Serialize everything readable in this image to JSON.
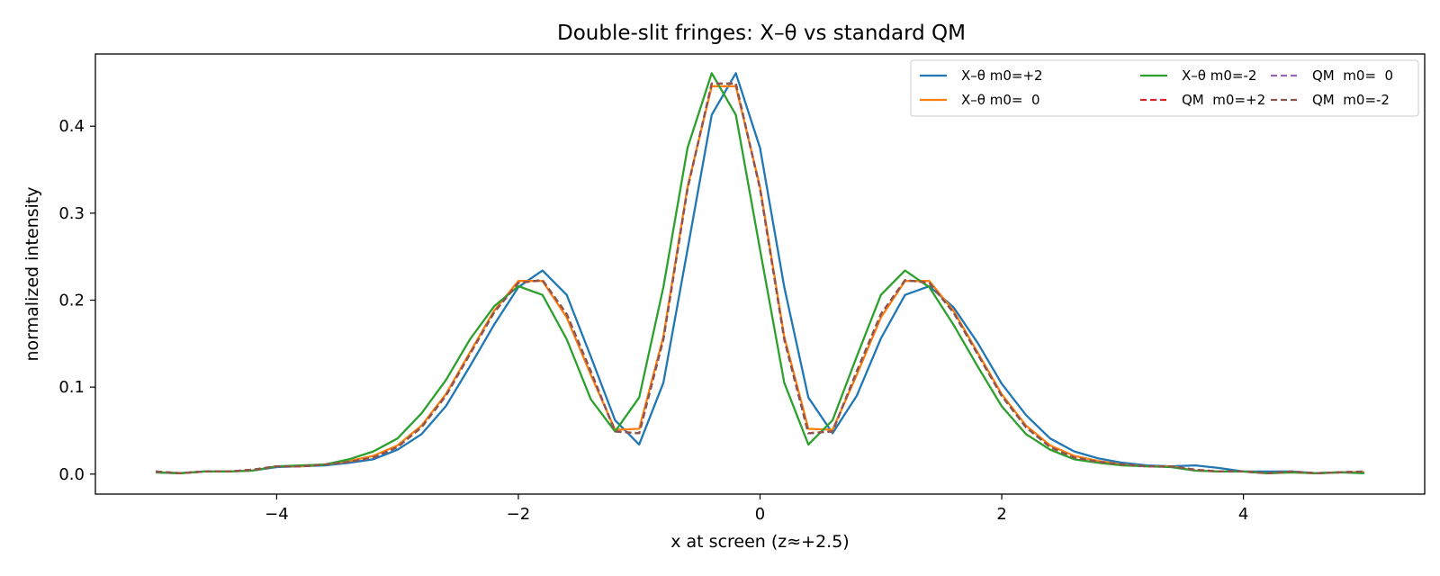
{
  "chart_data": {
    "type": "line",
    "title": "Double-slit fringes: X–θ vs standard QM",
    "xlabel": "x at screen (z≈+2.5)",
    "ylabel": "normalized intensity",
    "xlim": [
      -5.5,
      5.5
    ],
    "ylim": [
      -0.023,
      0.483
    ],
    "xticks": [
      -4,
      -2,
      0,
      2,
      4
    ],
    "xtick_labels": [
      "−4",
      "−2",
      "0",
      "2",
      "4"
    ],
    "yticks": [
      0.0,
      0.1,
      0.2,
      0.3,
      0.4
    ],
    "ytick_labels": [
      "0.0",
      "0.1",
      "0.2",
      "0.3",
      "0.4"
    ],
    "grid": false,
    "legend_position": "top-right",
    "legend_columns": 3,
    "x": [
      -5.0,
      -4.8,
      -4.6,
      -4.4,
      -4.2,
      -4.0,
      -3.8,
      -3.6,
      -3.4,
      -3.2,
      -3.0,
      -2.8,
      -2.6,
      -2.4,
      -2.2,
      -2.0,
      -1.8,
      -1.6,
      -1.4,
      -1.2,
      -1.0,
      -0.8,
      -0.6,
      -0.4,
      -0.2,
      0.0,
      0.2,
      0.4,
      0.6,
      0.8,
      1.0,
      1.2,
      1.4,
      1.6,
      1.8,
      2.0,
      2.2,
      2.4,
      2.6,
      2.8,
      3.0,
      3.2,
      3.4,
      3.6,
      3.8,
      4.0,
      4.2,
      4.4,
      4.6,
      4.8,
      5.0
    ],
    "series": [
      {
        "name": "X–θ m0=+2",
        "color": "#1f77b4",
        "style": "solid",
        "values": [
          0.002,
          0.001,
          0.003,
          0.003,
          0.004,
          0.008,
          0.009,
          0.01,
          0.013,
          0.017,
          0.028,
          0.046,
          0.078,
          0.124,
          0.172,
          0.215,
          0.234,
          0.206,
          0.135,
          0.062,
          0.034,
          0.105,
          0.258,
          0.413,
          0.461,
          0.375,
          0.215,
          0.088,
          0.047,
          0.09,
          0.156,
          0.206,
          0.216,
          0.192,
          0.151,
          0.104,
          0.068,
          0.041,
          0.026,
          0.018,
          0.013,
          0.01,
          0.009,
          0.01,
          0.007,
          0.003,
          0.003,
          0.003,
          0.001,
          0.002,
          0.002
        ]
      },
      {
        "name": "X–θ m0=  0",
        "color": "#ff7f0e",
        "style": "solid",
        "values": [
          0.002,
          0.001,
          0.003,
          0.003,
          0.004,
          0.009,
          0.009,
          0.011,
          0.015,
          0.021,
          0.033,
          0.056,
          0.092,
          0.14,
          0.188,
          0.222,
          0.222,
          0.18,
          0.114,
          0.051,
          0.052,
          0.158,
          0.33,
          0.446,
          0.446,
          0.33,
          0.158,
          0.052,
          0.051,
          0.114,
          0.18,
          0.222,
          0.222,
          0.188,
          0.14,
          0.092,
          0.056,
          0.033,
          0.021,
          0.015,
          0.011,
          0.009,
          0.009,
          0.004,
          0.003,
          0.003,
          0.001,
          0.002,
          0.001,
          0.002,
          0.002
        ]
      },
      {
        "name": "X–θ m0=-2",
        "color": "#2ca02c",
        "style": "solid",
        "values": [
          0.002,
          0.001,
          0.003,
          0.003,
          0.004,
          0.009,
          0.01,
          0.011,
          0.017,
          0.026,
          0.041,
          0.07,
          0.108,
          0.155,
          0.193,
          0.216,
          0.206,
          0.155,
          0.086,
          0.049,
          0.088,
          0.215,
          0.375,
          0.461,
          0.413,
          0.258,
          0.105,
          0.034,
          0.062,
          0.135,
          0.206,
          0.234,
          0.215,
          0.172,
          0.124,
          0.078,
          0.046,
          0.028,
          0.017,
          0.013,
          0.01,
          0.009,
          0.008,
          0.004,
          0.003,
          0.003,
          0.001,
          0.002,
          0.001,
          0.002,
          0.001
        ]
      },
      {
        "name": "QM  m0=+2",
        "color": "#d62728",
        "style": "dashed",
        "values": [
          0.003,
          0.001,
          0.003,
          0.003,
          0.005,
          0.009,
          0.009,
          0.011,
          0.014,
          0.019,
          0.031,
          0.054,
          0.09,
          0.138,
          0.186,
          0.22,
          0.223,
          0.184,
          0.118,
          0.049,
          0.047,
          0.155,
          0.328,
          0.449,
          0.449,
          0.328,
          0.155,
          0.047,
          0.049,
          0.118,
          0.184,
          0.223,
          0.22,
          0.186,
          0.138,
          0.09,
          0.054,
          0.031,
          0.019,
          0.014,
          0.011,
          0.009,
          0.009,
          0.005,
          0.003,
          0.003,
          0.001,
          0.003,
          0.001,
          0.002,
          0.003
        ]
      },
      {
        "name": "QM  m0=  0",
        "color": "#9467bd",
        "style": "dashed",
        "values": [
          0.003,
          0.001,
          0.003,
          0.003,
          0.005,
          0.009,
          0.009,
          0.011,
          0.014,
          0.019,
          0.031,
          0.054,
          0.09,
          0.138,
          0.186,
          0.22,
          0.223,
          0.184,
          0.118,
          0.049,
          0.047,
          0.155,
          0.328,
          0.449,
          0.449,
          0.328,
          0.155,
          0.047,
          0.049,
          0.118,
          0.184,
          0.223,
          0.22,
          0.186,
          0.138,
          0.09,
          0.054,
          0.031,
          0.019,
          0.014,
          0.011,
          0.009,
          0.009,
          0.005,
          0.003,
          0.003,
          0.001,
          0.003,
          0.001,
          0.002,
          0.003
        ]
      },
      {
        "name": "QM  m0=-2",
        "color": "#8c564b",
        "style": "dashed",
        "values": [
          0.003,
          0.001,
          0.003,
          0.003,
          0.005,
          0.009,
          0.009,
          0.011,
          0.014,
          0.019,
          0.031,
          0.054,
          0.09,
          0.138,
          0.186,
          0.22,
          0.223,
          0.184,
          0.118,
          0.049,
          0.047,
          0.155,
          0.328,
          0.449,
          0.449,
          0.328,
          0.155,
          0.047,
          0.049,
          0.118,
          0.184,
          0.223,
          0.22,
          0.186,
          0.138,
          0.09,
          0.054,
          0.031,
          0.019,
          0.014,
          0.011,
          0.009,
          0.009,
          0.005,
          0.003,
          0.003,
          0.001,
          0.003,
          0.001,
          0.002,
          0.003
        ]
      }
    ]
  }
}
